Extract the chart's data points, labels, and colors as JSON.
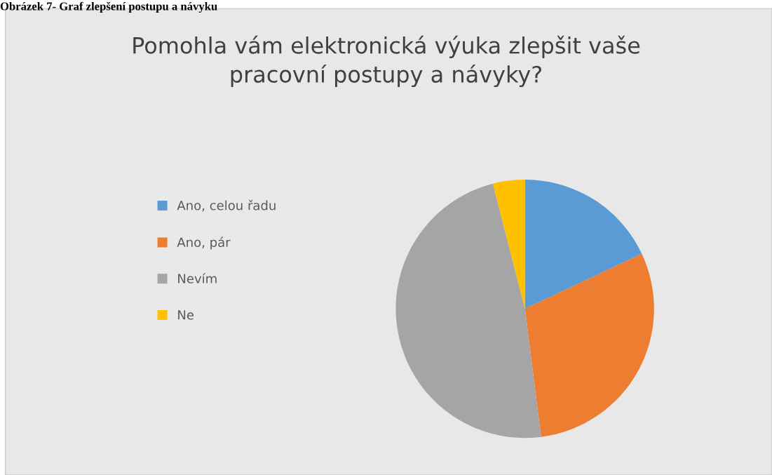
{
  "chart_data": {
    "type": "pie",
    "title": "Pomohla vám elektronická výuka zlepšit vaše\npracovní postupy a návyky?",
    "annotations": [
      "Obrázek 7- Graf zlepšení postupu a návyku"
    ],
    "categories": [
      "Ano, celou řadu",
      "Ano, pár",
      "Nevím",
      "Ne"
    ],
    "values": [
      18,
      30,
      48,
      4
    ],
    "colors": [
      "#5b9bd5",
      "#ed7d31",
      "#a5a5a5",
      "#ffc000"
    ],
    "legend": "left"
  }
}
